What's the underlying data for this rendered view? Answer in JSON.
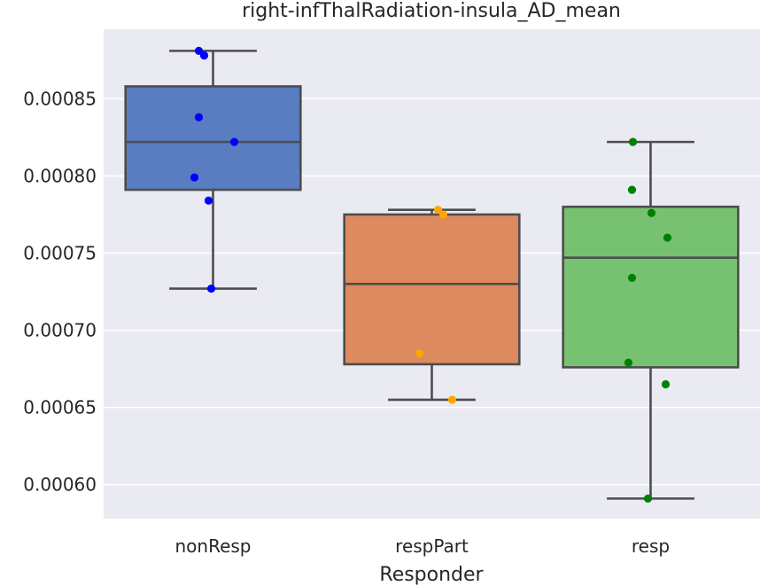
{
  "chart_data": {
    "type": "boxplot",
    "title": "right-infThalRadiation-insula_AD_mean",
    "xlabel": "Responder",
    "ylabel": "",
    "categories": [
      "nonResp",
      "respPart",
      "resp"
    ],
    "ylim": [
      0.000578,
      0.000895
    ],
    "yticks": [
      0.0006,
      0.00065,
      0.0007,
      0.00075,
      0.0008,
      0.00085
    ],
    "ytick_labels": [
      "0.00060",
      "0.00065",
      "0.00070",
      "0.00075",
      "0.00080",
      "0.00085"
    ],
    "grid": true,
    "boxes": [
      {
        "category": "nonResp",
        "whisker_low": 0.000727,
        "q1": 0.000791,
        "median": 0.000822,
        "q3": 0.000858,
        "whisker_high": 0.000881,
        "color": "#5a7dc2"
      },
      {
        "category": "respPart",
        "whisker_low": 0.000655,
        "q1": 0.000678,
        "median": 0.00073,
        "q3": 0.000775,
        "whisker_high": 0.000778,
        "color": "#dc8a5e"
      },
      {
        "category": "resp",
        "whisker_low": 0.000591,
        "q1": 0.000676,
        "median": 0.000747,
        "q3": 0.00078,
        "whisker_high": 0.000822,
        "color": "#77c270"
      }
    ],
    "points": [
      {
        "category": "nonResp",
        "color": "#0000ff",
        "values": [
          0.000881,
          0.000878,
          0.000838,
          0.000822,
          0.000799,
          0.000784,
          0.000727
        ]
      },
      {
        "category": "respPart",
        "color": "#ffa500",
        "values": [
          0.000778,
          0.000775,
          0.000685,
          0.000655
        ]
      },
      {
        "category": "resp",
        "color": "#008000",
        "values": [
          0.000822,
          0.000791,
          0.000776,
          0.00076,
          0.000734,
          0.000679,
          0.000665,
          0.000591
        ]
      }
    ]
  }
}
